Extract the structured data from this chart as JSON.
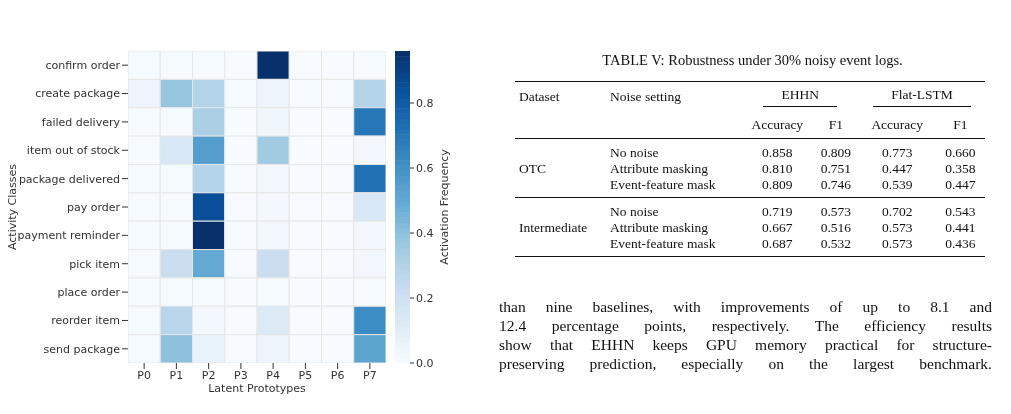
{
  "chart_data": [
    {
      "type": "heatmap",
      "xlabel": "Latent Prototypes",
      "ylabel": "Activity Classes",
      "clabel": "Activation Frequency",
      "categories": [
        "P0",
        "P1",
        "P2",
        "P3",
        "P4",
        "P5",
        "P6",
        "P7"
      ],
      "y_categories": [
        "confirm order",
        "create package",
        "failed delivery",
        "item out of stock",
        "package delivered",
        "pay order",
        "payment reminder",
        "pick item",
        "place order",
        "reorder item",
        "send package"
      ],
      "cells": [
        [
          0.01,
          0.01,
          0.01,
          0,
          0.96,
          0,
          0,
          0.01
        ],
        [
          0.05,
          0.38,
          0.3,
          0.01,
          0.05,
          0.01,
          0.01,
          0.3
        ],
        [
          0.01,
          0.01,
          0.32,
          0,
          0.04,
          0,
          0,
          0.7
        ],
        [
          0.01,
          0.15,
          0.55,
          0,
          0.35,
          0,
          0,
          0.03
        ],
        [
          0.01,
          0.01,
          0.3,
          0,
          0.03,
          0,
          0,
          0.72
        ],
        [
          0.01,
          0.01,
          0.85,
          0,
          0.02,
          0,
          0,
          0.15
        ],
        [
          0.01,
          0.01,
          0.96,
          0,
          0.02,
          0,
          0,
          0.03
        ],
        [
          0.01,
          0.22,
          0.5,
          0,
          0.22,
          0,
          0,
          0.03
        ],
        [
          0.01,
          0.01,
          0.01,
          0,
          0.01,
          0,
          0,
          0.01
        ],
        [
          0.01,
          0.28,
          0.02,
          0,
          0.13,
          0,
          0,
          0.62
        ],
        [
          0.01,
          0.4,
          0.07,
          0,
          0.05,
          0,
          0,
          0.52
        ]
      ],
      "clim": [
        0,
        0.96
      ],
      "cticks": [
        {
          "value": 0,
          "label": "0.0"
        },
        {
          "value": 0.2,
          "label": "0.2"
        },
        {
          "value": 0.4,
          "label": "0.4"
        },
        {
          "value": 0.6,
          "label": "0.6"
        },
        {
          "value": 0.8,
          "label": "0.8"
        }
      ]
    },
    {
      "type": "other",
      "title": "TABLE V: Robustness under 30% noisy event logs.",
      "cell_labels": [
        [
          "Dataset",
          "Noise setting",
          "EHHN",
          null,
          "Flat-LSTM",
          null
        ],
        [
          null,
          null,
          "Accuracy",
          "F1",
          "Accuracy",
          "F1"
        ],
        [
          null,
          "No noise",
          "0.858",
          "0.809",
          "0.773",
          "0.660"
        ],
        [
          "OTC",
          "Attribute masking",
          "0.810",
          "0.751",
          "0.447",
          "0.358"
        ],
        [
          null,
          "Event-feature mask",
          "0.809",
          "0.746",
          "0.539",
          "0.447"
        ],
        [
          null,
          "No noise",
          "0.719",
          "0.573",
          "0.702",
          "0.543"
        ],
        [
          "Intermediate",
          "Attribute masking",
          "0.667",
          "0.516",
          "0.573",
          "0.441"
        ],
        [
          null,
          "Event-feature mask",
          "0.687",
          "0.532",
          "0.573",
          "0.436"
        ]
      ],
      "annotations": [
        "than nine baselines, with improvements of up to 8.1 and",
        "12.4 percentage points, respectively. The efficiency results",
        "show that EHHN keeps GPU memory practical for structure-",
        "preserving prediction, especially on the largest benchmark."
      ]
    }
  ]
}
